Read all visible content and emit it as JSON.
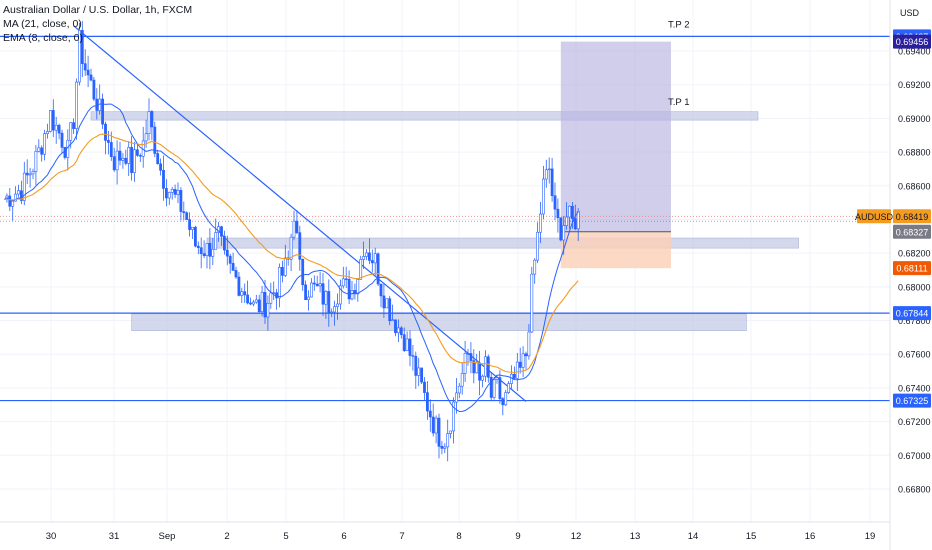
{
  "header": {
    "symbol_line": "Australian Dollar / U.S. Dollar, 1h, FXCM",
    "ma_line": "MA (21, close, 0)",
    "ema_line": "EMA (8, close, 0)"
  },
  "currency_label": "USD",
  "colors": {
    "candle": "#2962ff",
    "ma": "#2962ff",
    "ema": "#f39c21",
    "level_line": "#2962ff",
    "zone_fill": "#c5cbe6",
    "target_fill": "#b8b4e0",
    "stop_fill": "#fbd0b6",
    "price_tag": "#f39c21",
    "badge_blue": "#2962ff",
    "badge_navy": "#2a1f9d",
    "badge_orange": "#f05a05",
    "badge_gray": "#787b86"
  },
  "chart_data": {
    "type": "candlestick",
    "symbol": "AUDUSD",
    "timeframe": "1h",
    "ylim": [
      0.668,
      0.6962
    ],
    "y_ticks": [
      "0.69400",
      "0.69200",
      "0.69000",
      "0.68800",
      "0.68600",
      "0.68400",
      "0.68200",
      "0.68000",
      "0.67800",
      "0.67600",
      "0.67400",
      "0.67200",
      "0.67000",
      "0.66800"
    ],
    "x_ticks": [
      "30",
      "31",
      "Sep",
      "2",
      "5",
      "6",
      "7",
      "8",
      "9",
      "12",
      "13",
      "14",
      "15",
      "16",
      "19"
    ],
    "price_path": [
      [
        0,
        0.6852
      ],
      [
        3,
        0.6858
      ],
      [
        5,
        0.6872
      ],
      [
        6,
        0.688
      ],
      [
        8,
        0.6902
      ],
      [
        10,
        0.6888
      ],
      [
        11,
        0.688
      ],
      [
        12,
        0.69
      ],
      [
        13,
        0.6945
      ],
      [
        14,
        0.693
      ],
      [
        16,
        0.691
      ],
      [
        18,
        0.6885
      ],
      [
        19,
        0.6875
      ],
      [
        21,
        0.688
      ],
      [
        22,
        0.6872
      ],
      [
        24,
        0.6885
      ],
      [
        25,
        0.69
      ],
      [
        27,
        0.687
      ],
      [
        28,
        0.686
      ],
      [
        30,
        0.685
      ],
      [
        31,
        0.6845
      ],
      [
        32,
        0.6835
      ],
      [
        33,
        0.6825
      ],
      [
        35,
        0.6822
      ],
      [
        37,
        0.683
      ],
      [
        38,
        0.6815
      ],
      [
        40,
        0.6805
      ],
      [
        42,
        0.6795
      ],
      [
        43,
        0.6788
      ],
      [
        45,
        0.679
      ],
      [
        47,
        0.68
      ],
      [
        49,
        0.6815
      ],
      [
        50,
        0.6845
      ],
      [
        51,
        0.681
      ],
      [
        52,
        0.68
      ],
      [
        54,
        0.6798
      ],
      [
        56,
        0.679
      ],
      [
        58,
        0.68
      ],
      [
        60,
        0.6798
      ],
      [
        61,
        0.6808
      ],
      [
        62,
        0.6825
      ],
      [
        64,
        0.6815
      ],
      [
        65,
        0.68
      ],
      [
        67,
        0.6782
      ],
      [
        69,
        0.677
      ],
      [
        71,
        0.675
      ],
      [
        72,
        0.674
      ],
      [
        73,
        0.673
      ],
      [
        74,
        0.672
      ],
      [
        75,
        0.6712
      ],
      [
        76,
        0.671
      ],
      [
        77,
        0.6722
      ],
      [
        78,
        0.6738
      ],
      [
        79,
        0.6748
      ],
      [
        80,
        0.676
      ],
      [
        81,
        0.6755
      ],
      [
        82,
        0.6742
      ],
      [
        83,
        0.6752
      ],
      [
        84,
        0.6735
      ],
      [
        85,
        0.674
      ],
      [
        86,
        0.673
      ],
      [
        87,
        0.6738
      ],
      [
        88,
        0.6745
      ],
      [
        89,
        0.675
      ],
      [
        90,
        0.676
      ],
      [
        91,
        0.68
      ],
      [
        92,
        0.683
      ],
      [
        93,
        0.686
      ],
      [
        94,
        0.687
      ],
      [
        95,
        0.684
      ],
      [
        96,
        0.6835
      ],
      [
        97,
        0.6842
      ],
      [
        98,
        0.6838
      ],
      [
        99,
        0.6842
      ]
    ],
    "overlays": {
      "ma": {
        "name": "MA (21, close, 0)"
      },
      "ema": {
        "name": "EMA (8, close, 0)"
      },
      "trendline": {
        "from": [
          12,
          0.6955
        ],
        "to": [
          90,
          0.6732
        ]
      },
      "horizontal_levels": [
        0.69487,
        0.67844,
        0.67325
      ],
      "zones": [
        {
          "from": [
            15,
            0.6899
          ],
          "to": [
            130,
            0.6904
          ]
        },
        {
          "from": [
            35,
            0.6823
          ],
          "to": [
            137,
            0.6829
          ]
        },
        {
          "from": [
            22,
            0.6774
          ],
          "to": [
            128,
            0.6784
          ]
        }
      ],
      "position": {
        "entry": 0.68327,
        "target": 0.69456,
        "stop": 0.68111,
        "x_from": 96,
        "x_to": 115
      },
      "labels": [
        "T.P 2",
        "T.P 1"
      ]
    },
    "price_tags": {
      "level_1": "0.69487",
      "target": "0.69456",
      "symbol": "AUDUSD",
      "last": "0.68419",
      "entry": "0.68327",
      "stop": "0.68111",
      "level_2": "0.67844",
      "level_3": "0.67325"
    }
  }
}
